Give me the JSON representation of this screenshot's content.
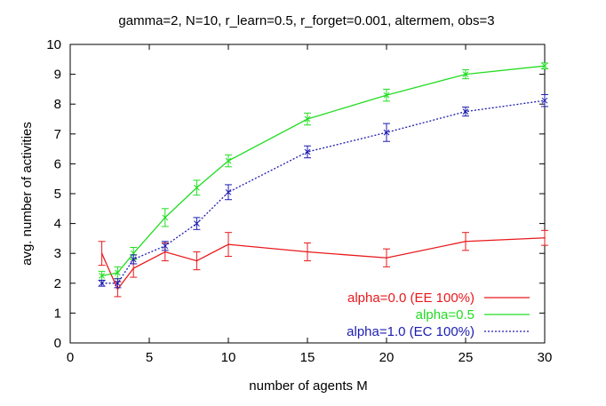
{
  "chart_data": {
    "type": "line",
    "title": "gamma=2, N=10, r_learn=0.5, r_forget=0.001, altermem, obs=3",
    "xlabel": "number of agents M",
    "ylabel": "avg. number of activities",
    "xlim": [
      0,
      30
    ],
    "ylim": [
      0,
      10
    ],
    "xticks": [
      0,
      5,
      10,
      15,
      20,
      25,
      30
    ],
    "yticks": [
      0,
      1,
      2,
      3,
      4,
      5,
      6,
      7,
      8,
      9,
      10
    ],
    "legend_position": "bottom-right",
    "series": [
      {
        "name": "alpha=0.0 (EE 100%)",
        "color": "#e8191c",
        "dash": "solid",
        "x": [
          2,
          3,
          4,
          6,
          8,
          10,
          15,
          20,
          25,
          30
        ],
        "y": [
          3.0,
          1.8,
          2.5,
          3.05,
          2.75,
          3.3,
          3.05,
          2.85,
          3.4,
          3.52
        ],
        "err": [
          0.4,
          0.25,
          0.3,
          0.3,
          0.3,
          0.4,
          0.3,
          0.3,
          0.3,
          0.25
        ]
      },
      {
        "name": "alpha=0.5",
        "color": "#22dd22",
        "dash": "solid",
        "x": [
          2,
          3,
          4,
          6,
          8,
          10,
          15,
          20,
          25,
          30
        ],
        "y": [
          2.25,
          2.35,
          3.0,
          4.2,
          5.2,
          6.1,
          7.5,
          8.3,
          9.0,
          9.28
        ],
        "err": [
          0.15,
          0.2,
          0.2,
          0.3,
          0.25,
          0.2,
          0.2,
          0.2,
          0.15,
          0.1
        ]
      },
      {
        "name": "alpha=1.0 (EC 100%)",
        "color": "#1c1cb0",
        "dash": "dotted",
        "x": [
          2,
          3,
          4,
          6,
          8,
          10,
          15,
          20,
          25,
          30
        ],
        "y": [
          2.0,
          2.0,
          2.8,
          3.25,
          4.0,
          5.05,
          6.4,
          7.05,
          7.75,
          8.12
        ],
        "err": [
          0.1,
          0.15,
          0.15,
          0.15,
          0.2,
          0.25,
          0.2,
          0.3,
          0.15,
          0.2
        ]
      }
    ]
  }
}
